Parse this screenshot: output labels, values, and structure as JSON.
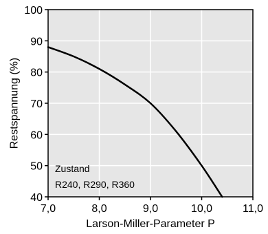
{
  "chart_data": {
    "type": "line",
    "title": "",
    "xlabel": "Larson-Miller-Parameter  P",
    "ylabel": "Restspannung (%)",
    "xlim": [
      7.0,
      11.0
    ],
    "ylim": [
      40,
      100
    ],
    "xticks": [
      7.0,
      8.0,
      9.0,
      10.0,
      11.0
    ],
    "xtick_labels": [
      "7,0",
      "8,0",
      "9,0",
      "10,0",
      "11,0"
    ],
    "yticks": [
      40,
      50,
      60,
      70,
      80,
      90,
      100
    ],
    "ytick_labels": [
      "40",
      "50",
      "60",
      "70",
      "80",
      "90",
      "100"
    ],
    "grid": true,
    "background": "#e6e6e6",
    "grid_color": "#ffffff",
    "line_color": "#000000",
    "series": [
      {
        "x": [
          7.0,
          7.5,
          8.0,
          8.5,
          9.0,
          9.5,
          10.0,
          10.4
        ],
        "y": [
          88,
          85,
          81,
          76,
          70,
          61,
          50,
          40
        ]
      }
    ],
    "annotation": {
      "line1": "Zustand",
      "line2": "R240, R290, R360"
    }
  }
}
